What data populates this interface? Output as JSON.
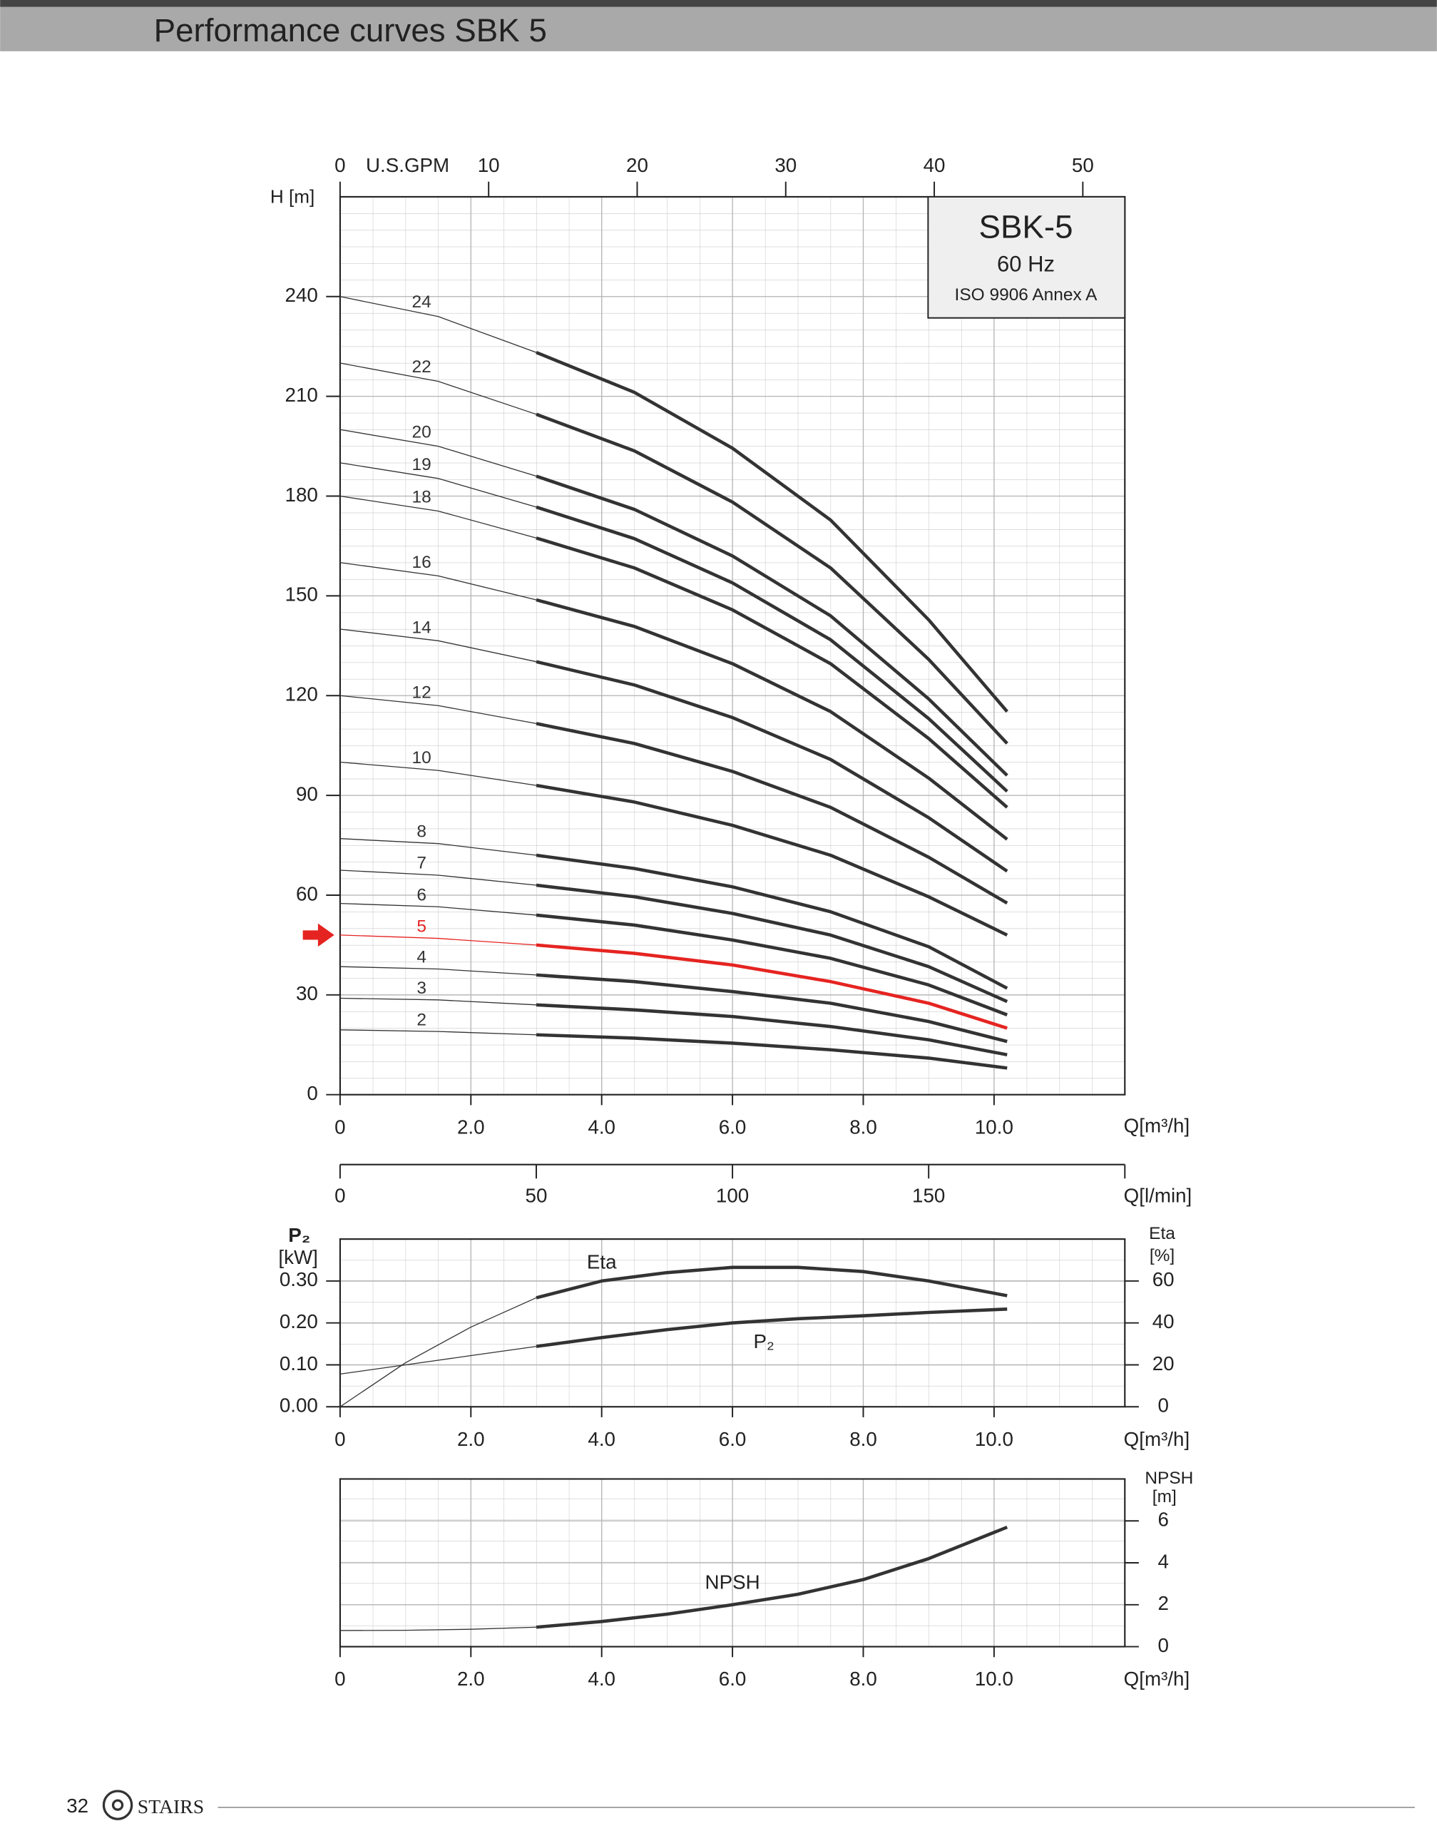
{
  "header": {
    "title": "Performance curves SBK 5"
  },
  "footer": {
    "page": "32",
    "brand": "STAIRS"
  },
  "chart_data": [
    {
      "type": "line",
      "info_box": [
        "SBK-5",
        "60 Hz",
        "ISO 9906 Annex A"
      ],
      "y_label": "H [m]",
      "x_label": "Q[m³/h]",
      "x2_label": "U.S.GPM",
      "x2lim": [
        0,
        52.83
      ],
      "x2ticks": [
        0,
        10,
        20,
        30,
        40,
        50
      ],
      "x3_label": "Q[l/min]",
      "x3lim": [
        0,
        200
      ],
      "x3ticks": [
        0,
        50,
        100,
        150
      ],
      "xlim": [
        0,
        12
      ],
      "ylim": [
        0,
        270
      ],
      "xticks": [
        0,
        {
          "value": 2,
          "label": "2.0"
        },
        {
          "value": 4,
          "label": "4.0"
        },
        {
          "value": 6,
          "label": "6.0"
        },
        {
          "value": 8,
          "label": "8.0"
        },
        {
          "value": 10,
          "label": "10.0"
        }
      ],
      "yticks": [
        0,
        30,
        60,
        90,
        120,
        150,
        180,
        210,
        240
      ],
      "grid": true,
      "x": [
        0,
        1.5,
        3,
        4.5,
        6,
        7.5,
        9,
        10.2
      ],
      "series": [
        {
          "name": "24",
          "color": "#333333",
          "values": [
            240,
            234,
            223.2,
            211.2,
            194.4,
            172.8,
            142.8,
            115.2
          ]
        },
        {
          "name": "22",
          "color": "#333333",
          "values": [
            220,
            214.5,
            204.6,
            193.6,
            178.2,
            158.4,
            130.9,
            105.6
          ]
        },
        {
          "name": "20",
          "color": "#333333",
          "values": [
            200,
            195,
            186,
            176,
            162,
            144,
            119,
            96
          ]
        },
        {
          "name": "19",
          "color": "#333333",
          "values": [
            190,
            185.3,
            176.7,
            167.2,
            153.9,
            136.8,
            113.1,
            91.2
          ]
        },
        {
          "name": "18",
          "color": "#333333",
          "values": [
            180,
            175.5,
            167.4,
            158.4,
            145.8,
            129.6,
            107.1,
            86.4
          ]
        },
        {
          "name": "16",
          "color": "#333333",
          "values": [
            160,
            156,
            148.8,
            140.8,
            129.6,
            115.2,
            95.2,
            76.8
          ]
        },
        {
          "name": "14",
          "color": "#333333",
          "values": [
            140,
            136.5,
            130.2,
            123.2,
            113.4,
            100.8,
            83.3,
            67.2
          ]
        },
        {
          "name": "12",
          "color": "#333333",
          "values": [
            120,
            117,
            111.6,
            105.6,
            97.2,
            86.4,
            71.4,
            57.6
          ]
        },
        {
          "name": "10",
          "color": "#333333",
          "values": [
            100,
            97.5,
            93,
            88,
            81,
            72,
            59.5,
            48
          ]
        },
        {
          "name": "8",
          "color": "#333333",
          "values": [
            77,
            75.5,
            72,
            68,
            62.5,
            55,
            44.5,
            32
          ]
        },
        {
          "name": "7",
          "color": "#333333",
          "values": [
            67.5,
            66,
            63,
            59.5,
            54.5,
            48,
            38.5,
            28
          ]
        },
        {
          "name": "6",
          "color": "#333333",
          "values": [
            57.5,
            56.5,
            54,
            51,
            46.5,
            41,
            33,
            24
          ]
        },
        {
          "name": "5",
          "color": "#e52421",
          "values": [
            48,
            47,
            45,
            42.5,
            39,
            34,
            27.5,
            20
          ]
        },
        {
          "name": "4",
          "color": "#333333",
          "values": [
            38.5,
            37.8,
            36,
            34,
            31,
            27.5,
            22,
            16
          ]
        },
        {
          "name": "3",
          "color": "#333333",
          "values": [
            29,
            28.5,
            27,
            25.5,
            23.5,
            20.5,
            16.5,
            12
          ]
        },
        {
          "name": "2",
          "color": "#333333",
          "values": [
            19.5,
            19,
            18,
            17,
            15.5,
            13.5,
            11,
            8
          ]
        }
      ]
    },
    {
      "type": "line",
      "y_label": "P₂",
      "y_unit": "[kW]",
      "y2_label": "Eta",
      "y2_unit": "[%]",
      "x_label": "Q[m³/h]",
      "xlim": [
        0,
        12
      ],
      "ylim": [
        0,
        0.4
      ],
      "y2lim": [
        0,
        80
      ],
      "xticks": [
        0,
        {
          "value": 2,
          "label": "2.0"
        },
        {
          "value": 4,
          "label": "4.0"
        },
        {
          "value": 6,
          "label": "6.0"
        },
        {
          "value": 8,
          "label": "8.0"
        },
        {
          "value": 10,
          "label": "10.0"
        }
      ],
      "yticks": [
        {
          "value": 0,
          "label": "0.00"
        },
        {
          "value": 0.1,
          "label": "0.10"
        },
        {
          "value": 0.2,
          "label": "0.20"
        },
        {
          "value": 0.3,
          "label": "0.30"
        }
      ],
      "y2ticks": [
        0,
        20,
        40,
        60
      ],
      "grid": true,
      "x": [
        0,
        1,
        2,
        3,
        4,
        5,
        6,
        7,
        8,
        9,
        10.2
      ],
      "series": [
        {
          "name": "Eta",
          "color": "#333333",
          "axis": "y2",
          "values": [
            0,
            21,
            38,
            52,
            60,
            64,
            66.5,
            66.5,
            64.5,
            60,
            53
          ]
        },
        {
          "name": "P₂",
          "color": "#333333",
          "values": [
            0.078,
            0.1,
            0.122,
            0.144,
            0.165,
            0.184,
            0.2,
            0.21,
            0.217,
            0.225,
            0.233
          ]
        }
      ]
    },
    {
      "type": "line",
      "y2_label": "NPSH",
      "y2_unit": "[m]",
      "x_label": "Q[m³/h]",
      "xlim": [
        0,
        12
      ],
      "y2lim": [
        0,
        8
      ],
      "xticks": [
        0,
        {
          "value": 2,
          "label": "2.0"
        },
        {
          "value": 4,
          "label": "4.0"
        },
        {
          "value": 6,
          "label": "6.0"
        },
        {
          "value": 8,
          "label": "8.0"
        },
        {
          "value": 10,
          "label": "10.0"
        }
      ],
      "y2ticks": [
        0,
        2,
        4,
        6
      ],
      "grid": true,
      "x": [
        0,
        1,
        2,
        3,
        4,
        5,
        6,
        7,
        8,
        9,
        10.2
      ],
      "series": [
        {
          "name": "NPSH",
          "color": "#333333",
          "axis": "y2",
          "values": [
            0.77,
            0.78,
            0.83,
            0.93,
            1.2,
            1.55,
            2.0,
            2.5,
            3.2,
            4.2,
            5.7
          ]
        }
      ]
    }
  ]
}
